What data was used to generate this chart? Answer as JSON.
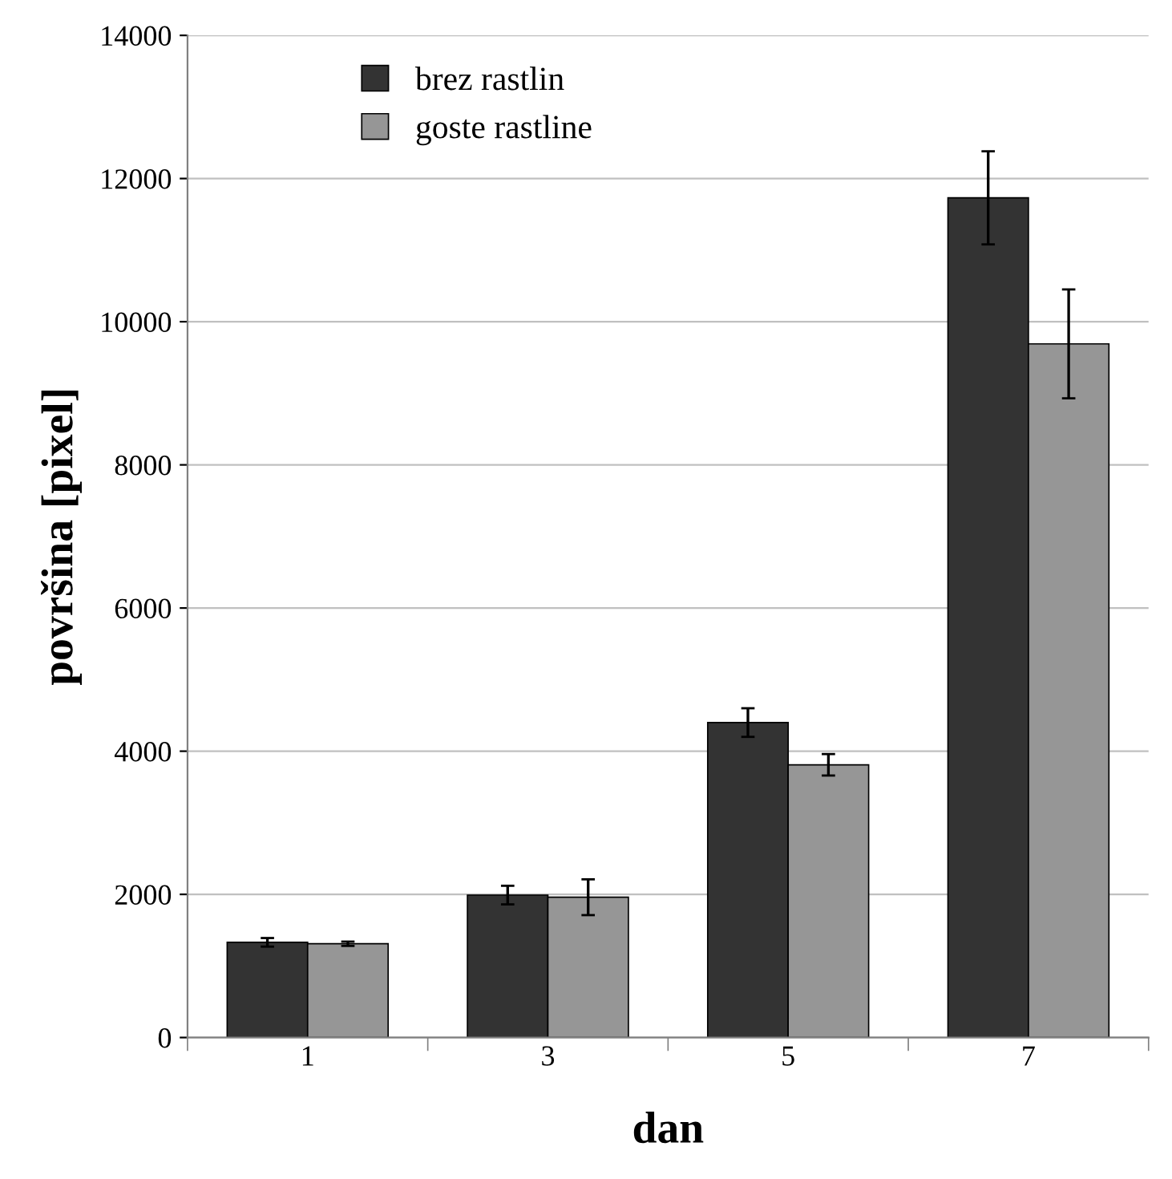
{
  "chart_data": {
    "type": "bar",
    "xlabel": "dan",
    "ylabel": "površina [pixel]",
    "categories": [
      "1",
      "3",
      "5",
      "7"
    ],
    "series": [
      {
        "name": "brez rastlin",
        "color": "#333333",
        "values": [
          1330,
          1990,
          4400,
          11730
        ],
        "errors": [
          60,
          130,
          200,
          650
        ]
      },
      {
        "name": "goste rastline",
        "color": "#969696",
        "values": [
          1310,
          1960,
          3810,
          9690
        ],
        "errors": [
          30,
          250,
          150,
          760
        ]
      }
    ],
    "ylim": [
      0,
      14000
    ],
    "yticks": [
      0,
      2000,
      4000,
      6000,
      8000,
      10000,
      12000,
      14000
    ],
    "grid": "y",
    "legend": "top left"
  }
}
